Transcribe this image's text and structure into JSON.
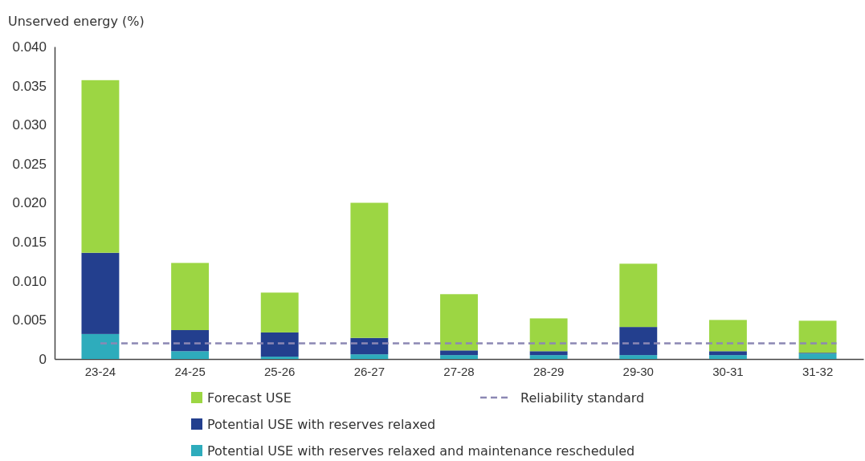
{
  "chart_data": {
    "type": "bar",
    "ylabel": "Unserved energy (%)",
    "stacked": true,
    "legend": "bottom",
    "categories": [
      "23-24",
      "24-25",
      "25-26",
      "26-27",
      "27-28",
      "28-29",
      "29-30",
      "30-31",
      "31-32"
    ],
    "series": [
      {
        "name": "Potential USE with reserves relaxed and maintenance rescheduled",
        "color": "#2eacbc",
        "values": [
          0.0032,
          0.001,
          0.0003,
          0.0006,
          0.0005,
          0.0005,
          0.0005,
          0.0005,
          0.0007
        ]
      },
      {
        "name": "Potential USE with reserves relaxed",
        "color": "#233f8e",
        "values": [
          0.0104,
          0.0027,
          0.0031,
          0.0021,
          0.0006,
          0.0005,
          0.0036,
          0.0005,
          0.0001
        ]
      },
      {
        "name": "Forecast USE",
        "color": "#9cd643",
        "values": [
          0.0221,
          0.0086,
          0.0051,
          0.0173,
          0.0072,
          0.0042,
          0.0081,
          0.004,
          0.0041
        ]
      }
    ],
    "ylim": [
      0,
      0.04
    ],
    "yticks": [
      {
        "value": 0,
        "label": "0"
      },
      {
        "value": 0.005,
        "label": "0.005"
      },
      {
        "value": 0.01,
        "label": "0.010"
      },
      {
        "value": 0.015,
        "label": "0.015"
      },
      {
        "value": 0.02,
        "label": "0.020"
      },
      {
        "value": 0.025,
        "label": "0.025"
      },
      {
        "value": 0.03,
        "label": "0.030"
      },
      {
        "value": 0.035,
        "label": "0.035"
      },
      {
        "value": 0.04,
        "label": "0.040"
      }
    ],
    "ref_lines": [
      {
        "axis": "y",
        "value": 0.002,
        "label": "Reliability standard",
        "color": "#8c88b4",
        "line_style": "dashed"
      }
    ]
  }
}
